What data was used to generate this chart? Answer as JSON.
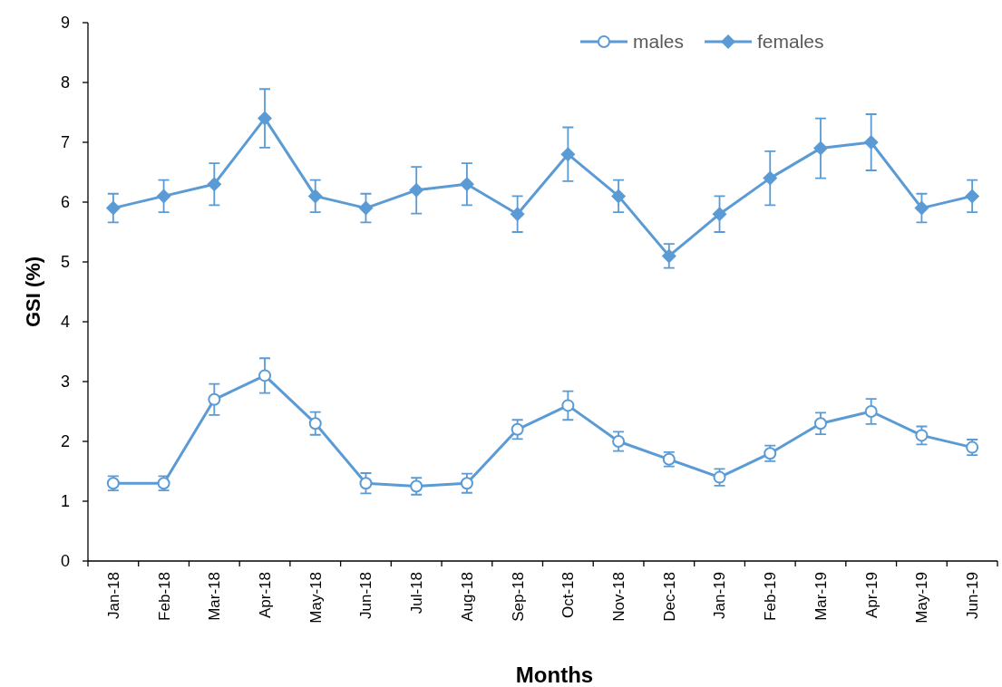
{
  "chart_data": {
    "type": "line",
    "xlabel": "Months",
    "ylabel": "GSI (%)",
    "categories": [
      "Jan-18",
      "Feb-18",
      "Mar-18",
      "Apr-18",
      "May-18",
      "Jun-18",
      "Jul-18",
      "Aug-18",
      "Sep-18",
      "Oct-18",
      "Nov-18",
      "Dec-18",
      "Jan-19",
      "Feb-19",
      "Mar-19",
      "Apr-19",
      "May-19",
      "Jun-19"
    ],
    "series": [
      {
        "name": "males",
        "color": "#5b9bd5",
        "marker": "circle",
        "values": [
          1.3,
          1.3,
          2.7,
          3.1,
          2.3,
          1.3,
          1.25,
          1.3,
          2.2,
          2.6,
          2.0,
          1.7,
          1.4,
          1.8,
          2.3,
          2.5,
          2.1,
          1.9
        ],
        "errors": [
          0.12,
          0.12,
          0.26,
          0.29,
          0.19,
          0.17,
          0.14,
          0.16,
          0.16,
          0.24,
          0.16,
          0.12,
          0.14,
          0.13,
          0.18,
          0.21,
          0.15,
          0.13
        ]
      },
      {
        "name": "females",
        "color": "#5b9bd5",
        "marker": "diamond",
        "values": [
          5.9,
          6.1,
          6.3,
          7.4,
          6.1,
          5.9,
          6.2,
          6.3,
          5.8,
          6.8,
          6.1,
          5.1,
          5.8,
          6.4,
          6.9,
          7.0,
          5.9,
          6.1
        ],
        "errors": [
          0.24,
          0.27,
          0.35,
          0.49,
          0.27,
          0.24,
          0.39,
          0.35,
          0.3,
          0.45,
          0.27,
          0.2,
          0.3,
          0.45,
          0.5,
          0.47,
          0.24,
          0.27
        ]
      }
    ],
    "ylim": [
      0,
      9
    ],
    "yticks": [
      0,
      1,
      2,
      3,
      4,
      5,
      6,
      7,
      8,
      9
    ],
    "grid": false,
    "legend": "top right",
    "line_style": "solid"
  }
}
